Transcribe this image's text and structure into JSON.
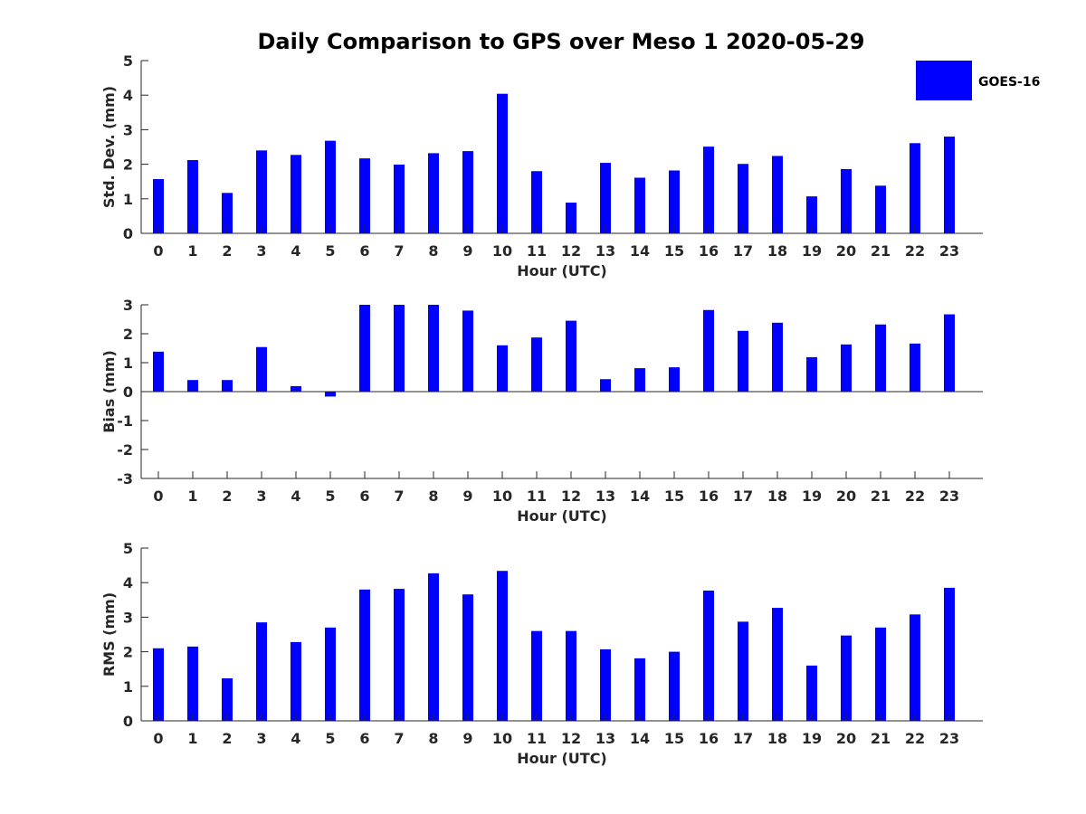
{
  "chart_data": {
    "type": "bar",
    "title": "Daily Comparison to GPS over Meso 1 2020-05-29",
    "legend": {
      "entries": [
        "GOES-16"
      ],
      "placement": "top-right"
    },
    "series_color": "#0000ff",
    "axis_color": "#262626",
    "grid": false,
    "panels": [
      {
        "id": "std",
        "xlabel": "Hour (UTC)",
        "ylabel": "Std. Dev. (mm)",
        "ylim": [
          0,
          5
        ],
        "yticks": [
          0,
          1,
          2,
          3,
          4,
          5
        ],
        "x": [
          0,
          1,
          2,
          3,
          4,
          5,
          6,
          7,
          8,
          9,
          10,
          11,
          12,
          13,
          14,
          15,
          16,
          17,
          18,
          19,
          20,
          21,
          22,
          23
        ],
        "values": [
          1.57,
          2.12,
          1.17,
          2.4,
          2.27,
          2.68,
          2.17,
          1.99,
          2.32,
          2.38,
          4.04,
          1.8,
          0.89,
          2.04,
          1.61,
          1.82,
          2.51,
          2.01,
          2.24,
          1.07,
          1.86,
          1.38,
          2.61,
          2.8
        ]
      },
      {
        "id": "bias",
        "xlabel": "Hour (UTC)",
        "ylabel": "Bias (mm)",
        "ylim": [
          -3,
          3
        ],
        "yticks": [
          -3,
          -2,
          -1,
          0,
          1,
          2,
          3
        ],
        "zero_line": true,
        "x": [
          0,
          1,
          2,
          3,
          4,
          5,
          6,
          7,
          8,
          9,
          10,
          11,
          12,
          13,
          14,
          15,
          16,
          17,
          18,
          19,
          20,
          21,
          22,
          23
        ],
        "values": [
          1.38,
          0.4,
          0.4,
          1.54,
          0.19,
          -0.17,
          3.0,
          3.0,
          3.0,
          2.8,
          1.6,
          1.87,
          2.45,
          0.43,
          0.81,
          0.84,
          2.82,
          2.1,
          2.38,
          1.19,
          1.63,
          2.32,
          1.66,
          2.67
        ]
      },
      {
        "id": "rms",
        "xlabel": "Hour (UTC)",
        "ylabel": "RMS (mm)",
        "ylim": [
          0,
          5
        ],
        "yticks": [
          0,
          1,
          2,
          3,
          4,
          5
        ],
        "x": [
          0,
          1,
          2,
          3,
          4,
          5,
          6,
          7,
          8,
          9,
          10,
          11,
          12,
          13,
          14,
          15,
          16,
          17,
          18,
          19,
          20,
          21,
          22,
          23
        ],
        "values": [
          2.1,
          2.15,
          1.23,
          2.85,
          2.28,
          2.7,
          3.8,
          3.82,
          4.27,
          3.66,
          4.34,
          2.6,
          2.6,
          2.07,
          1.81,
          2.0,
          3.77,
          2.87,
          3.27,
          1.6,
          2.47,
          2.7,
          3.08,
          3.85
        ]
      }
    ]
  }
}
